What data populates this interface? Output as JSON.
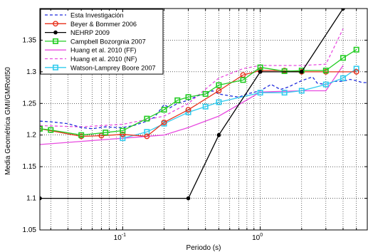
{
  "chart_data": {
    "type": "line",
    "xlabel": "Periodo (s)",
    "ylabel": "Media Geométrica GMI/GMRotI50",
    "xscale": "log",
    "xlim": [
      0.025,
      6
    ],
    "ylim": [
      1.05,
      1.4
    ],
    "grid": "major and minor dotted",
    "legend_position": "top-left",
    "x_ticks": [
      {
        "value": 0.1,
        "base": "10",
        "exp": "-1"
      },
      {
        "value": 1,
        "base": "10",
        "exp": "0"
      }
    ],
    "y_ticks": [
      {
        "value": 1.05,
        "label": "1.05"
      },
      {
        "value": 1.1,
        "label": "1.1"
      },
      {
        "value": 1.15,
        "label": "1.15"
      },
      {
        "value": 1.2,
        "label": "1.2"
      },
      {
        "value": 1.25,
        "label": "1.25"
      },
      {
        "value": 1.3,
        "label": "1.3"
      },
      {
        "value": 1.35,
        "label": "1.35"
      }
    ],
    "series": [
      {
        "name": "Esta Investigación",
        "color": "#1f2bdc",
        "dash": "4,3",
        "marker": "none",
        "points": [
          [
            0.025,
            1.222
          ],
          [
            0.03,
            1.221
          ],
          [
            0.04,
            1.218
          ],
          [
            0.05,
            1.212
          ],
          [
            0.06,
            1.21
          ],
          [
            0.075,
            1.213
          ],
          [
            0.09,
            1.212
          ],
          [
            0.1,
            1.212
          ],
          [
            0.12,
            1.215
          ],
          [
            0.15,
            1.222
          ],
          [
            0.17,
            1.228
          ],
          [
            0.2,
            1.248
          ],
          [
            0.22,
            1.243
          ],
          [
            0.25,
            1.25
          ],
          [
            0.3,
            1.255
          ],
          [
            0.35,
            1.262
          ],
          [
            0.4,
            1.265
          ],
          [
            0.45,
            1.27
          ],
          [
            0.5,
            1.265
          ],
          [
            0.6,
            1.262
          ],
          [
            0.7,
            1.26
          ],
          [
            0.8,
            1.265
          ],
          [
            1.0,
            1.27
          ],
          [
            1.2,
            1.28
          ],
          [
            1.4,
            1.272
          ],
          [
            1.6,
            1.276
          ],
          [
            2.0,
            1.286
          ],
          [
            2.4,
            1.292
          ],
          [
            2.6,
            1.282
          ],
          [
            3.0,
            1.28
          ],
          [
            3.5,
            1.285
          ],
          [
            4.0,
            1.285
          ],
          [
            4.5,
            1.288
          ],
          [
            5.0,
            1.286
          ],
          [
            5.5,
            1.283
          ],
          [
            6.0,
            1.283
          ]
        ]
      },
      {
        "name": "Beyer & Bommer 2006",
        "color": "#e8301a",
        "dash": "",
        "marker": "circle",
        "points": [
          [
            0.025,
            1.21
          ],
          [
            0.05,
            1.198
          ],
          [
            0.07,
            1.199
          ],
          [
            0.1,
            1.201
          ],
          [
            0.15,
            1.198
          ],
          [
            0.2,
            1.22
          ],
          [
            0.3,
            1.24
          ],
          [
            0.5,
            1.27
          ],
          [
            0.75,
            1.295
          ],
          [
            1.0,
            1.302
          ],
          [
            1.5,
            1.302
          ],
          [
            2.0,
            1.3
          ],
          [
            3.0,
            1.3
          ],
          [
            5.0,
            1.3
          ]
        ]
      },
      {
        "name": "NEHRP 2009",
        "color": "#000000",
        "dash": "",
        "marker": "dot",
        "points": [
          [
            0.025,
            1.1
          ],
          [
            0.3,
            1.1
          ],
          [
            0.5,
            1.2
          ],
          [
            1.0,
            1.3
          ],
          [
            2.0,
            1.3
          ],
          [
            4.0,
            1.4
          ]
        ]
      },
      {
        "name": "Campbell Bozorgnia 2007",
        "color": "#22cc22",
        "dash": "",
        "marker": "square",
        "points": [
          [
            0.025,
            1.21
          ],
          [
            0.03,
            1.208
          ],
          [
            0.05,
            1.2
          ],
          [
            0.075,
            1.204
          ],
          [
            0.1,
            1.207
          ],
          [
            0.15,
            1.226
          ],
          [
            0.2,
            1.24
          ],
          [
            0.25,
            1.255
          ],
          [
            0.3,
            1.26
          ],
          [
            0.4,
            1.265
          ],
          [
            0.5,
            1.279
          ],
          [
            0.75,
            1.287
          ],
          [
            1.0,
            1.307
          ],
          [
            1.5,
            1.301
          ],
          [
            2.0,
            1.302
          ],
          [
            3.0,
            1.302
          ],
          [
            4.0,
            1.322
          ],
          [
            5.0,
            1.335
          ]
        ]
      },
      {
        "name": "Huang et al. 2010 (FF)",
        "color": "#e84ce0",
        "dash": "",
        "marker": "none",
        "points": [
          [
            0.025,
            1.185
          ],
          [
            0.05,
            1.19
          ],
          [
            0.1,
            1.195
          ],
          [
            0.2,
            1.2
          ],
          [
            0.3,
            1.212
          ],
          [
            0.5,
            1.23
          ],
          [
            0.75,
            1.252
          ],
          [
            1.0,
            1.268
          ],
          [
            2.0,
            1.27
          ],
          [
            3.0,
            1.27
          ],
          [
            4.0,
            1.31
          ]
        ]
      },
      {
        "name": "Huang et al. 2010 (NF)",
        "color": "#e84ce0",
        "dash": "4,3",
        "marker": "none",
        "points": [
          [
            0.025,
            1.215
          ],
          [
            0.05,
            1.213
          ],
          [
            0.1,
            1.217
          ],
          [
            0.2,
            1.23
          ],
          [
            0.3,
            1.25
          ],
          [
            0.5,
            1.29
          ],
          [
            0.75,
            1.305
          ],
          [
            1.0,
            1.31
          ],
          [
            2.0,
            1.31
          ],
          [
            3.0,
            1.312
          ],
          [
            4.0,
            1.368
          ]
        ]
      },
      {
        "name": "Watson-Lamprey Boore 2007",
        "color": "#33ccee",
        "dash": "",
        "marker": "square",
        "points": [
          [
            0.1,
            1.195
          ],
          [
            0.15,
            1.205
          ],
          [
            0.2,
            1.218
          ],
          [
            0.3,
            1.236
          ],
          [
            0.4,
            1.245
          ],
          [
            0.5,
            1.252
          ],
          [
            1.0,
            1.267
          ],
          [
            1.5,
            1.267
          ],
          [
            2.0,
            1.27
          ],
          [
            3.0,
            1.28
          ],
          [
            4.0,
            1.29
          ],
          [
            5.0,
            1.305
          ]
        ]
      }
    ]
  }
}
